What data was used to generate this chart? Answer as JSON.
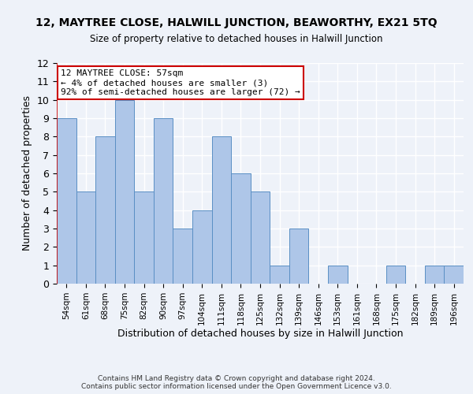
{
  "title": "12, MAYTREE CLOSE, HALWILL JUNCTION, BEAWORTHY, EX21 5TQ",
  "subtitle": "Size of property relative to detached houses in Halwill Junction",
  "xlabel": "Distribution of detached houses by size in Halwill Junction",
  "ylabel": "Number of detached properties",
  "categories": [
    "54sqm",
    "61sqm",
    "68sqm",
    "75sqm",
    "82sqm",
    "90sqm",
    "97sqm",
    "104sqm",
    "111sqm",
    "118sqm",
    "125sqm",
    "132sqm",
    "139sqm",
    "146sqm",
    "153sqm",
    "161sqm",
    "168sqm",
    "175sqm",
    "182sqm",
    "189sqm",
    "196sqm"
  ],
  "values": [
    9,
    5,
    8,
    10,
    5,
    9,
    3,
    4,
    8,
    6,
    5,
    1,
    3,
    0,
    1,
    0,
    0,
    1,
    0,
    1,
    1
  ],
  "bar_color": "#aec6e8",
  "bar_edge_color": "#5a8fc4",
  "annotation_text": "12 MAYTREE CLOSE: 57sqm\n← 4% of detached houses are smaller (3)\n92% of semi-detached houses are larger (72) →",
  "annotation_box_color": "#ffffff",
  "annotation_box_edge_color": "#cc0000",
  "ylim": [
    0,
    12
  ],
  "yticks": [
    0,
    1,
    2,
    3,
    4,
    5,
    6,
    7,
    8,
    9,
    10,
    11,
    12
  ],
  "footer_line1": "Contains HM Land Registry data © Crown copyright and database right 2024.",
  "footer_line2": "Contains public sector information licensed under the Open Government Licence v3.0.",
  "bg_color": "#eef2f9",
  "grid_color": "#ffffff",
  "vline_color": "#cc0000"
}
